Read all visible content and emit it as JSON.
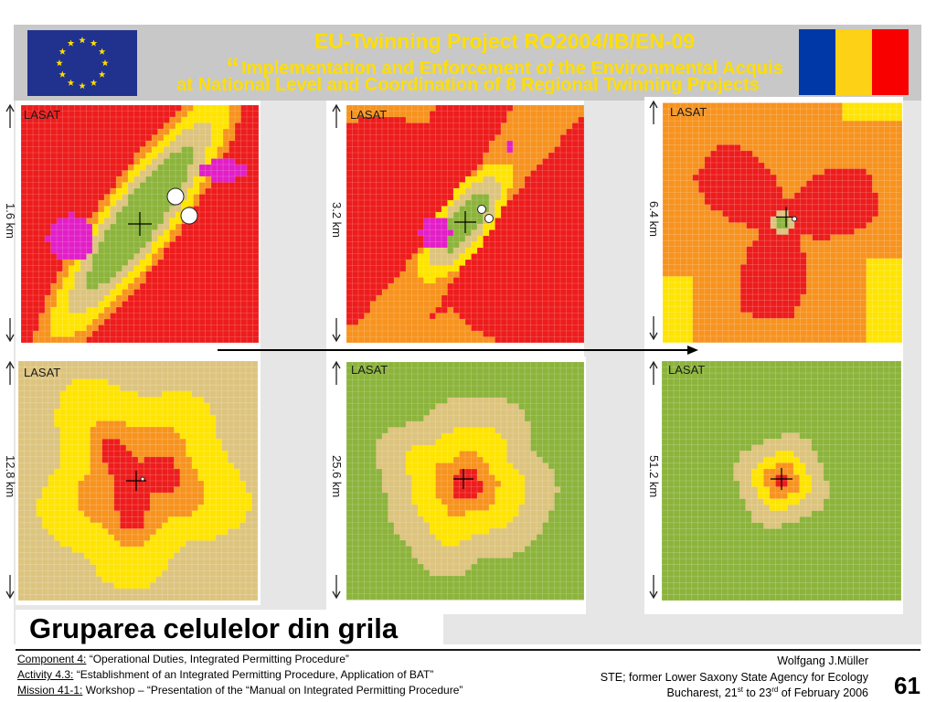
{
  "header": {
    "title_line1": "EU-Twinning  Project  RO2004/IB/EN-09",
    "title_open_quote": "“",
    "title_line2": "Implementation and Enforcement of the Environmental Acquis",
    "title_line3": "at National Level and Coordination of 8 Regional Twinning Projects",
    "eu_flag": "eu-flag-icon",
    "ro_flag": "romania-flag-icon"
  },
  "colors": {
    "title_text": "#ffde00",
    "header_bg": "#c8c8c8",
    "map_red": "#ee1c1c",
    "map_orange": "#f7931e",
    "map_yellow": "#ffe400",
    "map_tan": "#ddc47e",
    "map_green": "#8cb43c",
    "map_magenta": "#e21fc7"
  },
  "panels": [
    {
      "label": "LASAT",
      "scale": "1.6 km"
    },
    {
      "label": "LASAT",
      "scale": "3.2 km"
    },
    {
      "label": "LASAT",
      "scale": "6.4 km"
    },
    {
      "label": "LASAT",
      "scale": "12.8 km"
    },
    {
      "label": "LASAT",
      "scale": "25.6 km"
    },
    {
      "label": "LASAT",
      "scale": "51.2 km"
    }
  ],
  "heading": "Gruparea celulelor din grila",
  "footer": {
    "component_label": "Component 4:",
    "component_text": " “Operational Duties, Integrated Permitting Procedure”",
    "activity_label": "Activity 4.3:",
    "activity_text": " “Establishment of an Integrated Permitting Procedure, Application of BAT”",
    "mission_label": "Mission 41-1:",
    "mission_text": " Workshop – “Presentation of the “Manual on Integrated Permitting Procedure”",
    "author": "Wolfgang J.Müller",
    "affiliation": "STE; former Lower Saxony State Agency for Ecology",
    "date_prefix": "Bucharest, 21",
    "date_sup1": "st",
    "date_mid": " to 23",
    "date_sup2": "rd",
    "date_suffix": " of February 2006",
    "page_number": "61"
  }
}
